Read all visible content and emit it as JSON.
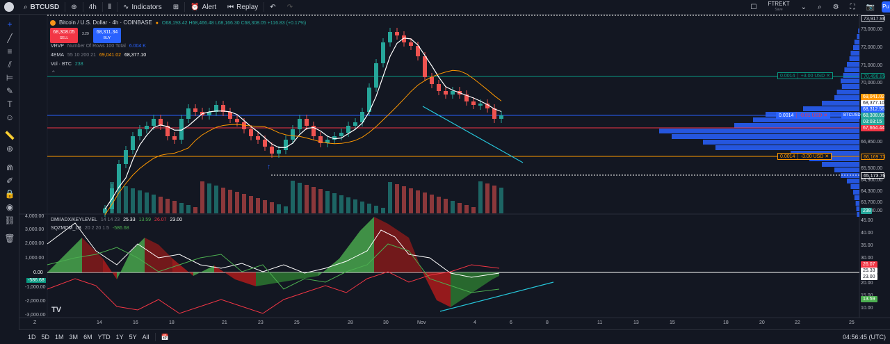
{
  "topbar": {
    "symbol": "BTCUSD",
    "interval": "4h",
    "indicators_label": "Indicators",
    "alert_label": "Alert",
    "replay_label": "Replay",
    "layout_name": "FTREKT",
    "layout_status": "Save",
    "publish_label": "Pu"
  },
  "legend": {
    "title": "Bitcoin / U.S. Dollar · 4h · COINBASE",
    "ohlc": "O68,193.42 H68,466.48 L68,166.30 C68,308.05 +116.83 (+0.17%)",
    "sell_price": "68,308.05",
    "sell_label": "SELL",
    "spread": "3.29",
    "buy_price": "68,311.34",
    "buy_label": "BUY",
    "vrvp": "VRVP",
    "vrvp_params": "Number Of Rows 100 Total",
    "vrvp_value": "6.004 K",
    "ema": "4EMA",
    "ema_params": "55 10 200 21",
    "ema_v1": "69,041.02",
    "ema_v2": "68,377.10",
    "vol": "Vol · BTC",
    "vol_value": "238",
    "dmi": "DMI/ADX/KEYLEVEL",
    "dmi_params": "14 14 23",
    "dmi_v1": "25.33",
    "dmi_v2": "13.59",
    "dmi_v3": "26.07",
    "dmi_v4": "23.00",
    "sqz": "SQZMOM_LB",
    "sqz_params": "20 2 20 1.5",
    "sqz_value": "-586.68"
  },
  "levels": {
    "upper_qty": "0.0014",
    "upper_text": "+3.00 USD",
    "mid_qty": "0.0014",
    "mid_text": "-0.01 USD",
    "lower_qty": "0.0014",
    "lower_text": "-3.00 USD"
  },
  "price_axis": {
    "labels": [
      "73,000.00",
      "72,000.00",
      "71,000.00",
      "70,000.00",
      "66,850.00",
      "65,500.00",
      "64,900.00",
      "64,300.00",
      "63,700.00",
      "63,000.00"
    ],
    "tag_top": "73,917.98",
    "tag_upper": "70,496.85",
    "tag_ema1": "69,041.02",
    "tag_ema2": "68,377.10",
    "tag_hi": "68,312.58",
    "tag_symbol": "BTCUSD",
    "tag_price": "68,308.05",
    "tag_countdown": "03:03:15",
    "tag_red": "67,664.44",
    "tag_lower": "66,169.73",
    "tag_low": "65,173.76",
    "tag_vol": "238"
  },
  "osc_left_axis": [
    "4,000.00",
    "3,000.00",
    "2,000.00",
    "1,000.00",
    "0.00",
    "-1,000.00",
    "-2,000.00",
    "-3,000.00"
  ],
  "osc_left_tag": "-586.68",
  "osc_right_axis": [
    "45.00",
    "40.00",
    "35.00",
    "30.00",
    "20.00",
    "15.00",
    "10.00"
  ],
  "osc_right_tags": [
    "26.07",
    "25.33",
    "23.00",
    "13.59"
  ],
  "time_axis": [
    "Z",
    "14",
    "16",
    "18",
    "21",
    "23",
    "25",
    "28",
    "30",
    "Nov",
    "4",
    "6",
    "8",
    "11",
    "13",
    "15",
    "18",
    "20",
    "22",
    "25"
  ],
  "bottombar": {
    "timeframes": [
      "1D",
      "5D",
      "1M",
      "3M",
      "6M",
      "YTD",
      "1Y",
      "5Y",
      "All"
    ],
    "clock": "04:56:45 (UTC)"
  },
  "colors": {
    "bg": "#131722",
    "up": "#26a69a",
    "down": "#ef5350",
    "ema_white": "#ffffff",
    "ema_orange": "#ff9800",
    "profile": "#2962ff",
    "trend": "#26c6da"
  }
}
